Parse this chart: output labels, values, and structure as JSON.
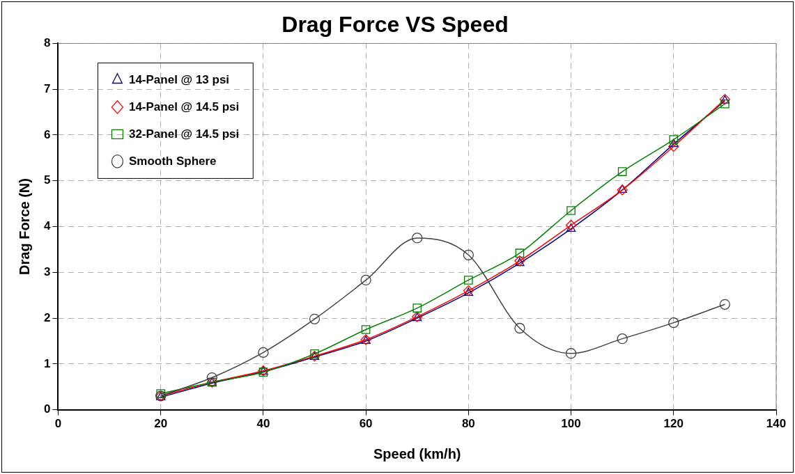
{
  "chart_data": {
    "type": "line",
    "title": "Drag Force VS Speed",
    "xlabel": "Speed (km/h)",
    "ylabel": "Drag Force (N)",
    "x": [
      20,
      30,
      40,
      50,
      60,
      70,
      80,
      90,
      100,
      110,
      120,
      130
    ],
    "xlim": [
      0,
      140
    ],
    "xticks": [
      0,
      20,
      40,
      60,
      80,
      100,
      120,
      140
    ],
    "ylim": [
      0,
      8
    ],
    "yticks": [
      0,
      1,
      2,
      3,
      4,
      5,
      6,
      7,
      8
    ],
    "grid": true,
    "legend": "top left",
    "series": [
      {
        "name": "14-Panel @ 13 psi",
        "color": "#000080",
        "marker": "triangle",
        "values": [
          0.27,
          0.58,
          0.83,
          1.15,
          1.5,
          2.0,
          2.55,
          3.2,
          3.95,
          4.8,
          5.8,
          6.75
        ]
      },
      {
        "name": "14-Panel @ 14.5 psi",
        "color": "#ff0000",
        "marker": "diamond",
        "values": [
          0.3,
          0.6,
          0.85,
          1.17,
          1.53,
          2.03,
          2.6,
          3.25,
          4.03,
          4.8,
          5.75,
          6.78
        ]
      },
      {
        "name": "32-Panel @ 14.5 psi",
        "color": "#008000",
        "marker": "square",
        "values": [
          0.35,
          0.6,
          0.82,
          1.22,
          1.75,
          2.22,
          2.83,
          3.42,
          4.35,
          5.2,
          5.9,
          6.68
        ]
      },
      {
        "name": "Smooth Sphere",
        "color": "#404040",
        "marker": "circle",
        "values": [
          0.3,
          0.7,
          1.25,
          1.98,
          2.83,
          3.75,
          3.38,
          1.78,
          1.23,
          1.55,
          1.9,
          2.3
        ]
      }
    ]
  }
}
